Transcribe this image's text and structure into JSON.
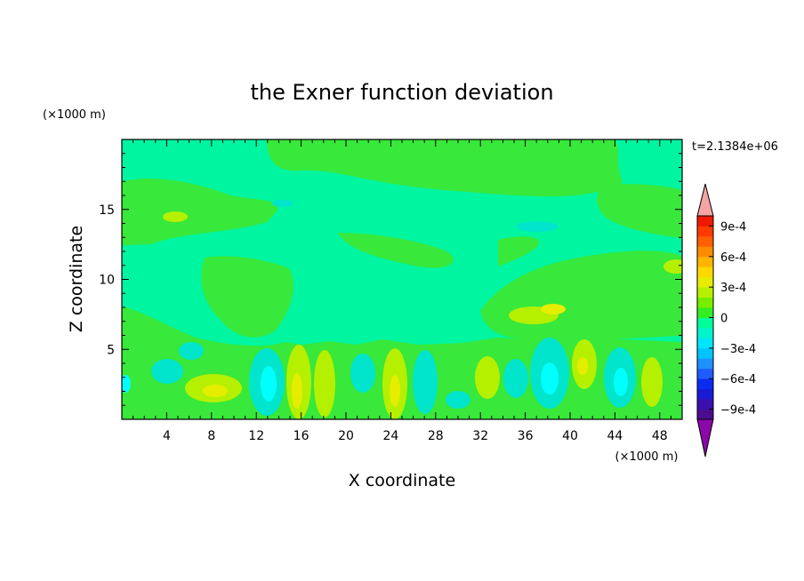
{
  "chart_data": {
    "type": "heatmap",
    "title": "the Exner function deviation",
    "xlabel": "X coordinate",
    "ylabel": "Z coordinate",
    "x_unit": "(×1000 m)",
    "y_unit": "(×1000 m)",
    "time_label": "t=2.1384e+06",
    "xlim": [
      0,
      50
    ],
    "ylim": [
      0,
      20
    ],
    "x_ticks": [
      4,
      8,
      12,
      16,
      20,
      24,
      28,
      32,
      36,
      40,
      44,
      48
    ],
    "y_ticks": [
      5,
      10,
      15
    ],
    "colorbar": {
      "levels": [
        -0.0011,
        -0.001,
        -0.0009,
        -0.0008,
        -0.0007,
        -0.0006,
        -0.0005,
        -0.0004,
        -0.0003,
        -0.0002,
        -0.0001,
        0,
        0.0001,
        0.0002,
        0.0003,
        0.0004,
        0.0005,
        0.0006,
        0.0007,
        0.0008,
        0.0009,
        0.001,
        0.0011
      ],
      "colors": [
        "#4b0d8f",
        "#3a0fb0",
        "#1a1ad2",
        "#0a2cf0",
        "#1f5cff",
        "#1e90ff",
        "#00c4ff",
        "#00e5ff",
        "#00f5cc",
        "#00ff99",
        "#33ee22",
        "#77ee00",
        "#b5f000",
        "#e5ee00",
        "#ffd800",
        "#ffb400",
        "#ff8c00",
        "#ff6000",
        "#ff3a00",
        "#f01800"
      ],
      "min_color": "#8a08a8",
      "max_color": "#f4a4a4",
      "tick_labels": [
        "9e-4",
        "6e-4",
        "3e-4",
        "0",
        "−3e-4",
        "−6e-4",
        "−9e-4"
      ]
    }
  }
}
